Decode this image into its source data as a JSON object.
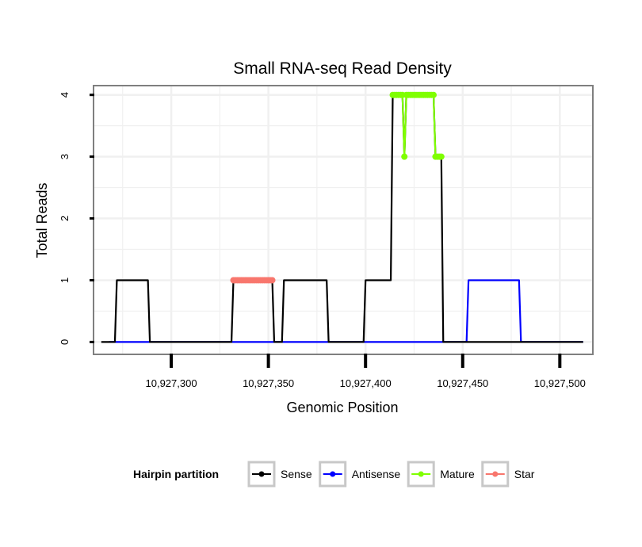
{
  "chart_data": {
    "type": "line",
    "title": "Small RNA-seq Read Density",
    "xlabel": "Genomic Position",
    "ylabel": "Total Reads",
    "xlim": [
      10927260,
      10927517
    ],
    "ylim": [
      -0.2,
      4.15
    ],
    "x_ticks": [
      10927300,
      10927350,
      10927400,
      10927450,
      10927500
    ],
    "x_tick_labels": [
      "10,927,300",
      "10,927,350",
      "10,927,400",
      "10,927,450",
      "10,927,500"
    ],
    "y_ticks": [
      0,
      1,
      2,
      3,
      4
    ],
    "y_tick_labels": [
      "0",
      "1",
      "2",
      "3",
      "4"
    ],
    "grid": true,
    "legend": {
      "title": "Hairpin partition",
      "position": "bottom",
      "entries": [
        {
          "label": "Sense",
          "color": "#000000"
        },
        {
          "label": "Antisense",
          "color": "#0000ff"
        },
        {
          "label": "Mature",
          "color": "#7fff00"
        },
        {
          "label": "Star",
          "color": "#f8766d"
        }
      ]
    },
    "series": [
      {
        "name": "Antisense",
        "color": "#0000ff",
        "markers": false,
        "x": [
          10927268,
          10927452,
          10927453,
          10927479,
          10927480,
          10927512
        ],
        "y": [
          0,
          0,
          1,
          1,
          0,
          0
        ]
      },
      {
        "name": "Sense",
        "color": "#000000",
        "markers": false,
        "x": [
          10927264,
          10927271,
          10927272,
          10927288,
          10927289,
          10927331,
          10927332,
          10927352,
          10927353,
          10927357,
          10927358,
          10927380,
          10927381,
          10927399,
          10927400,
          10927413,
          10927414,
          10927419,
          10927420,
          10927421,
          10927422,
          10927435,
          10927436,
          10927439,
          10927440,
          10927512
        ],
        "y": [
          0,
          0,
          1,
          1,
          0,
          0,
          1,
          1,
          0,
          0,
          1,
          1,
          0,
          0,
          1,
          1,
          4,
          4,
          3,
          4,
          4,
          4,
          3,
          3,
          0,
          0
        ]
      },
      {
        "name": "Star",
        "color": "#f8766d",
        "markers": true,
        "x": [
          10927332,
          10927333,
          10927334,
          10927335,
          10927336,
          10927337,
          10927338,
          10927339,
          10927340,
          10927341,
          10927342,
          10927343,
          10927344,
          10927345,
          10927346,
          10927347,
          10927348,
          10927349,
          10927350,
          10927351,
          10927352
        ],
        "y": [
          1,
          1,
          1,
          1,
          1,
          1,
          1,
          1,
          1,
          1,
          1,
          1,
          1,
          1,
          1,
          1,
          1,
          1,
          1,
          1,
          1
        ]
      },
      {
        "name": "Mature",
        "color": "#7fff00",
        "markers": true,
        "x": [
          10927414,
          10927415,
          10927416,
          10927417,
          10927418,
          10927419,
          10927420,
          10927421,
          10927422,
          10927423,
          10927424,
          10927425,
          10927426,
          10927427,
          10927428,
          10927429,
          10927430,
          10927431,
          10927432,
          10927433,
          10927434,
          10927435,
          10927436,
          10927437,
          10927438,
          10927439
        ],
        "y": [
          4,
          4,
          4,
          4,
          4,
          4,
          3,
          4,
          4,
          4,
          4,
          4,
          4,
          4,
          4,
          4,
          4,
          4,
          4,
          4,
          4,
          4,
          3,
          3,
          3,
          3
        ]
      }
    ]
  }
}
